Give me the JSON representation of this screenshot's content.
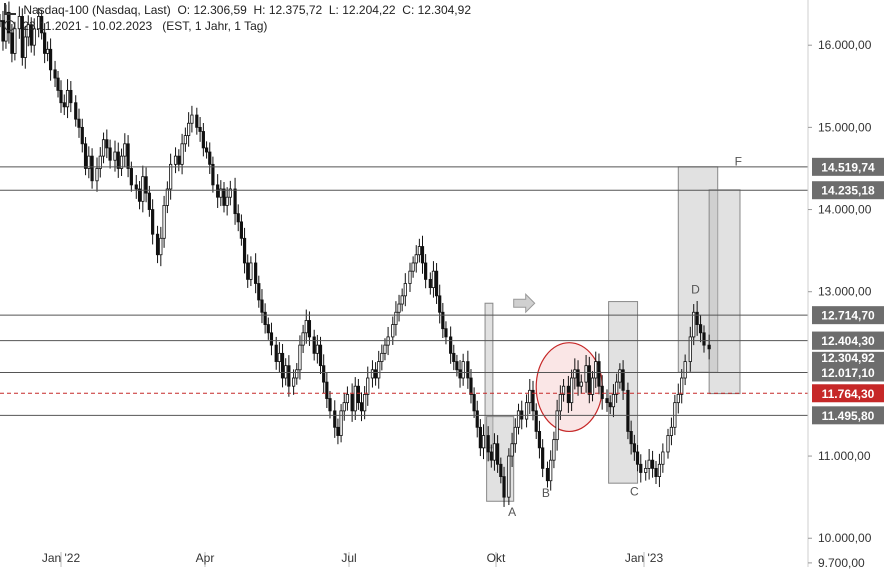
{
  "header": {
    "instrument": "Nasdaq-100 (Nasdaq, Last)",
    "ohlc": "O: 12.306,59  H: 12.375,72  L: 12.204,22  C: 12.304,92",
    "range": "23.11.2021 - 10.02.2023",
    "settings": "(EST, 1 Jahr, 1 Tag)"
  },
  "chart_data": {
    "type": "candlestick",
    "title": "Nasdaq-100 (Nasdaq, Last)",
    "x_ticks": [
      "Jan '22",
      "Apr",
      "Jul",
      "Okt",
      "Jan '23"
    ],
    "y_ticks": [
      "16.000,00",
      "15.000,00",
      "14.000,00",
      "13.000,00",
      "11.000,00",
      "10.000,00",
      "9.700,00"
    ],
    "y_tick_values": [
      16000,
      15000,
      14000,
      13000,
      11000,
      10000,
      9700
    ],
    "ylim": [
      9650,
      16550
    ],
    "last_close": 12304.92,
    "last_label": "12.304,92",
    "horizontal_levels": [
      {
        "value": 14519.74,
        "label": "14.519,74"
      },
      {
        "value": 14235.18,
        "label": "14.235,18"
      },
      {
        "value": 12714.7,
        "label": "12.714,70"
      },
      {
        "value": 12404.3,
        "label": "12.404,30"
      },
      {
        "value": 12017.1,
        "label": "12.017,10"
      },
      {
        "value": 11764.3,
        "label": "11.764,30",
        "dashed": true,
        "color": "#c62828"
      },
      {
        "value": 11495.8,
        "label": "11.495,80"
      }
    ],
    "point_labels": [
      {
        "label": "A",
        "date": "2022-10-13",
        "value": 10440
      },
      {
        "label": "B",
        "date": "2022-11-03",
        "value": 10670
      },
      {
        "label": "C",
        "date": "2022-12-28",
        "value": 10690
      },
      {
        "label": "D",
        "date": "2023-02-02",
        "value": 12880
      },
      {
        "label": "F",
        "date": "2023-02-27",
        "value": 14440
      }
    ],
    "closes": [
      16300,
      16050,
      16400,
      16150,
      15900,
      16200,
      16350,
      15850,
      16100,
      16250,
      16000,
      16200,
      16350,
      16150,
      15900,
      15950,
      15700,
      15600,
      15450,
      15300,
      15250,
      15450,
      15300,
      15100,
      15000,
      14800,
      14500,
      14650,
      14350,
      14500,
      14650,
      14850,
      14750,
      14600,
      14700,
      14500,
      14650,
      14800,
      14500,
      14300,
      14250,
      14100,
      14400,
      14200,
      14000,
      13700,
      13450,
      13650,
      14050,
      14250,
      14550,
      14650,
      14550,
      14800,
      14900,
      15050,
      15150,
      15000,
      14950,
      14750,
      14700,
      14550,
      14300,
      14150,
      14250,
      14050,
      14150,
      14250,
      13950,
      13850,
      13650,
      13350,
      13150,
      13350,
      13100,
      12900,
      12750,
      12600,
      12500,
      12350,
      12150,
      12250,
      11950,
      12100,
      11850,
      11950,
      12050,
      12350,
      12500,
      12650,
      12450,
      12250,
      12350,
      12100,
      11900,
      11700,
      11550,
      11350,
      11250,
      11550,
      11650,
      11750,
      11550,
      11850,
      11650,
      11550,
      11750,
      11950,
      12050,
      11950,
      12150,
      12250,
      12350,
      12450,
      12600,
      12750,
      12850,
      12950,
      13100,
      13250,
      13350,
      13450,
      13550,
      13350,
      13150,
      13050,
      13250,
      12950,
      12750,
      12550,
      12450,
      12250,
      12150,
      12050,
      11950,
      12150,
      11950,
      11750,
      11550,
      11350,
      11100,
      11250,
      11050,
      10950,
      11150,
      10900,
      10750,
      10500,
      11000,
      11150,
      11350,
      11550,
      11450,
      11650,
      11800,
      11550,
      11300,
      11100,
      10850,
      10700,
      10950,
      11200,
      11550,
      11750,
      11850,
      11650,
      11950,
      12050,
      11850,
      11900,
      12100,
      11750,
      11950,
      12150,
      11850,
      11700,
      11650,
      11600,
      11750,
      11900,
      12050,
      11800,
      11300,
      11150,
      11050,
      10900,
      10800,
      10850,
      10950,
      10850,
      10750,
      10900,
      11050,
      11250,
      11350,
      11650,
      11750,
      11950,
      12150,
      12450,
      12750,
      12600,
      12500,
      12350,
      12304.92
    ]
  }
}
